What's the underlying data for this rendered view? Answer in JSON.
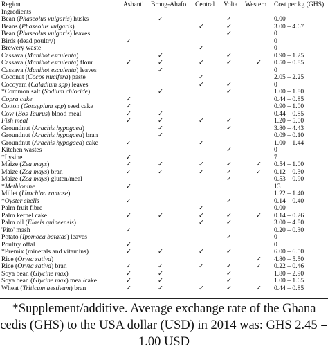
{
  "table": {
    "header": [
      "Region",
      "Ashanti",
      "Brong-Ahafo",
      "Central",
      "Volta",
      "Western",
      "Cost per kg (GHS)"
    ],
    "subheader": "Ingredients",
    "check_mark": "✓",
    "rows": [
      {
        "name": "Bean (Phaseolus vulgaris) husks",
        "italic": "Phaseolus vulgaris",
        "checks": [
          false,
          true,
          false,
          true,
          false
        ],
        "cost": "0.00"
      },
      {
        "name": "Beans (Phaseolus vulgaris)",
        "italic": "Phaseolus vulgaris",
        "checks": [
          false,
          false,
          true,
          true,
          false
        ],
        "cost": "3.00 – 4.67"
      },
      {
        "name": "Bean (Phaseolus vulgaris) leaves",
        "italic": "Phaseolus vulgaris",
        "checks": [
          false,
          false,
          false,
          true,
          false
        ],
        "cost": "0"
      },
      {
        "name": "Birds (dead poultry)",
        "checks": [
          true,
          false,
          false,
          false,
          false
        ],
        "cost": "0"
      },
      {
        "name": "Brewery waste",
        "checks": [
          false,
          false,
          true,
          false,
          false
        ],
        "cost": "0"
      },
      {
        "name": "Cassava (Manihot esculenta)",
        "italic": "Manihot esculenta",
        "checks": [
          false,
          true,
          false,
          true,
          false
        ],
        "cost": "0.90 – 1.25"
      },
      {
        "name": "Cassava (Manihot esculenta) flour",
        "italic": "Manihot esculenta",
        "checks": [
          true,
          true,
          true,
          true,
          true
        ],
        "cost": "0.50 – 0.85"
      },
      {
        "name": "Cassava (Manihot esculenta) leaves",
        "italic": "Manihot esculenta",
        "checks": [
          false,
          true,
          false,
          false,
          false
        ],
        "cost": "0"
      },
      {
        "name": "Coconut (Cocos nucifera) paste",
        "italic": "Cocos nucifera",
        "checks": [
          false,
          false,
          true,
          false,
          false
        ],
        "cost": "2.05 – 2.25"
      },
      {
        "name": "Cocoyam (Caladium spp) leaves",
        "italic": "Caladium spp",
        "checks": [
          false,
          false,
          true,
          true,
          false
        ],
        "cost": "0"
      },
      {
        "name": "*Common salt (Sodium chloride)",
        "italic": "Sodium chloride",
        "checks": [
          false,
          true,
          false,
          true,
          false
        ],
        "cost": "1.00 – 1.80"
      },
      {
        "name": "Copra cake",
        "italic": "Copra cake",
        "checks": [
          true,
          false,
          false,
          false,
          false
        ],
        "cost": "0.44 – 0.85"
      },
      {
        "name": "Cotton (Gossypium spp) seed cake",
        "italic": "Gossypium spp",
        "checks": [
          true,
          false,
          false,
          false,
          false
        ],
        "cost": "0.90 – 1.00"
      },
      {
        "name": "Cow (Bos Taurus) blood meal",
        "italic": "Bos Taurus",
        "checks": [
          true,
          true,
          false,
          false,
          false
        ],
        "cost": "0.44 – 0.85"
      },
      {
        "name": "Fish meal",
        "italic": "Fish meal",
        "checks": [
          true,
          true,
          true,
          true,
          false
        ],
        "cost": "1.20 – 5.00"
      },
      {
        "name": "Groundnut (Arachis hypogaea)",
        "italic": "Arachis hypogaea",
        "checks": [
          false,
          true,
          false,
          true,
          false
        ],
        "cost": "3.80 – 4.43"
      },
      {
        "name": "Groundnut (Arachis hypogaea) bran",
        "italic": "Arachis hypogaea",
        "checks": [
          false,
          true,
          false,
          false,
          false
        ],
        "cost": "0.09 – 0.10"
      },
      {
        "name": "Groundnut (Arachis hypogaea) cake",
        "italic": "Arachis hypogaea",
        "checks": [
          true,
          false,
          true,
          false,
          false
        ],
        "cost": "1.00 – 1.44"
      },
      {
        "name": "Kitchen wastes",
        "checks": [
          false,
          false,
          false,
          true,
          false
        ],
        "cost": "0"
      },
      {
        "name": "*Lysine",
        "checks": [
          true,
          false,
          false,
          false,
          false
        ],
        "cost": "7"
      },
      {
        "name": "Maize (Zea mays)",
        "italic": "Zea mays",
        "checks": [
          true,
          true,
          true,
          true,
          true
        ],
        "cost": "0.54 – 1.00"
      },
      {
        "name": "Maize (Zea mays) bran",
        "italic": "Zea mays",
        "checks": [
          true,
          true,
          true,
          true,
          true
        ],
        "cost": "0.12 – 0.30"
      },
      {
        "name": "Maize (Zea mays) gluten/meal",
        "italic": "Zea mays",
        "checks": [
          false,
          false,
          false,
          true,
          false
        ],
        "cost": "0.53 – 0.90"
      },
      {
        "name": "*Methionine",
        "italic": "Methionine",
        "checks": [
          true,
          false,
          false,
          false,
          false
        ],
        "cost": "13"
      },
      {
        "name": "Millet (Urochloa ramose)",
        "italic": "Urochloa ramose",
        "checks": [
          false,
          false,
          false,
          false,
          false
        ],
        "cost": "1.22 – 1.40"
      },
      {
        "name": "*Oyster shells",
        "italic": "Oyster shells",
        "checks": [
          true,
          false,
          false,
          true,
          false
        ],
        "cost": "0.14 – 0.40"
      },
      {
        "name": "Palm fruit fibre",
        "checks": [
          false,
          false,
          true,
          false,
          false
        ],
        "cost": "0.00"
      },
      {
        "name": "Palm kernel cake",
        "checks": [
          true,
          true,
          true,
          true,
          true
        ],
        "cost": "0.14 – 0.26"
      },
      {
        "name": "Palm oil (Elaeis quineensis)",
        "italic": "Elaeis quineensis",
        "checks": [
          false,
          false,
          true,
          true,
          false
        ],
        "cost": "3.00 – 4.80"
      },
      {
        "name": "'Pito' mash",
        "checks": [
          true,
          false,
          false,
          false,
          false
        ],
        "cost": "0.20 – 0.30"
      },
      {
        "name": "Potato (Ipomoea batatas) leaves",
        "italic": "Ipomoea batatas",
        "checks": [
          false,
          false,
          false,
          true,
          false
        ],
        "cost": "0"
      },
      {
        "name": "Poultry offal",
        "checks": [
          true,
          false,
          false,
          false,
          false
        ],
        "cost": "0"
      },
      {
        "name": "*Premix (minerals and vitamins)",
        "checks": [
          true,
          true,
          true,
          true,
          false
        ],
        "cost": "6.00 – 6.50"
      },
      {
        "name": "Rice (Oryza sativa)",
        "italic": "Oryza sativa",
        "checks": [
          false,
          false,
          false,
          false,
          true
        ],
        "cost": "4.80 – 5.50"
      },
      {
        "name": "Rice (Oryza sativa) bran",
        "italic": "Oryza sativa",
        "checks": [
          true,
          true,
          true,
          true,
          true
        ],
        "cost": "0.22 – 0.46"
      },
      {
        "name": "Soya bean (Glycine max)",
        "italic": "Glycine max",
        "checks": [
          true,
          true,
          false,
          true,
          false
        ],
        "cost": "1.80 – 2.90"
      },
      {
        "name": "Soya bean (Glycine max) meal/cake",
        "italic": "Glycine max",
        "checks": [
          true,
          true,
          false,
          true,
          false
        ],
        "cost": "1.00 – 1.65"
      },
      {
        "name": "Wheat (Triticum aestivum) bran",
        "italic": "Triticum aestivum",
        "checks": [
          true,
          true,
          true,
          true,
          true
        ],
        "cost": "0.44 – 0.85"
      }
    ],
    "footnote": "*Supplement/additive. Average exchange rate of the Ghana cedis (GHS) to the USA dollar (USD) in 2014 was: GHS 2.45 = 1.00 USD"
  }
}
